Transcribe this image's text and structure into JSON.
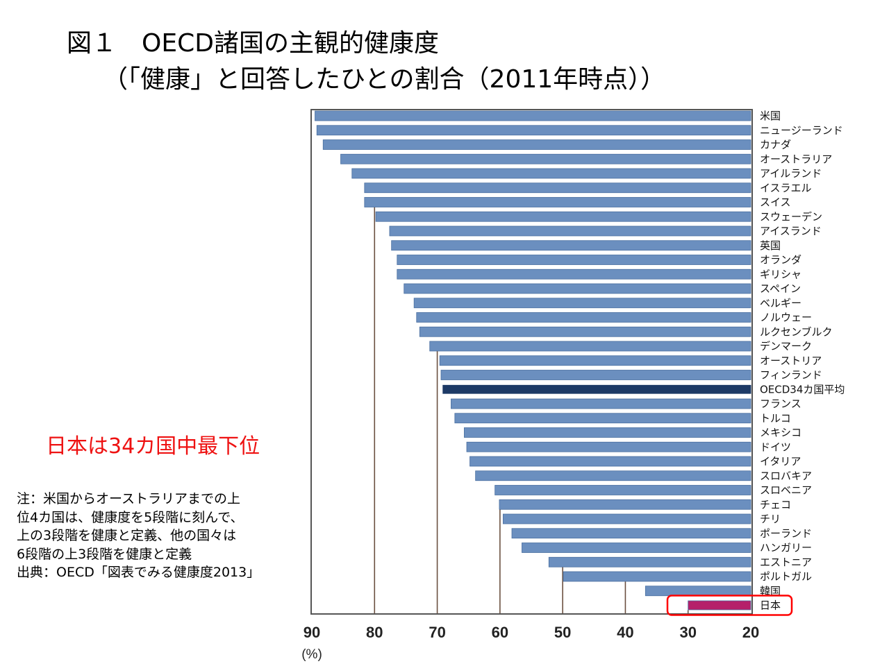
{
  "title": {
    "line1": "図１　OECD諸国の主観的健康度",
    "line2": "（「健康」と回答したひとの割合（2011年時点））"
  },
  "highlight_text": "日本は34カ国中最下位",
  "note_lines": [
    "注：米国からオーストラリアまでの上",
    "位4カ国は、健康度を5段階に刻んで、",
    "上の3段階を健康と定義、他の国々は",
    "6段階の上3段階を健康と定義",
    "出典：OECD「図表でみる健康度2013」"
  ],
  "colors": {
    "bar": "#6b8fbf",
    "bar_edge": "#4a6fa0",
    "average": "#1d3a66",
    "japan": "#b5206a",
    "highlight_box": "#ff0000",
    "gridline": "#6b5040"
  },
  "chart_data": {
    "type": "bar",
    "orientation": "horizontal",
    "reversed_x_axis": true,
    "xlim": [
      90,
      20
    ],
    "xticks": [
      "90",
      "80",
      "70",
      "60",
      "50",
      "40",
      "30",
      "20"
    ],
    "unit_label": "(%)",
    "grid": "vertical",
    "highlighted_category": "日本",
    "categories": [
      "米国",
      "ニュージーランド",
      "カナダ",
      "オーストラリア",
      "アイルランド",
      "イスラエル",
      "スイス",
      "スウェーデン",
      "アイスランド",
      "英国",
      "オランダ",
      "ギリシャ",
      "スペイン",
      "ベルギー",
      "ノルウェー",
      "ルクセンブルク",
      "デンマーク",
      "オーストリア",
      "フィンランド",
      "OECD34カ国平均",
      "フランス",
      "トルコ",
      "メキシコ",
      "ドイツ",
      "イタリア",
      "スロバキア",
      "スロベニア",
      "チェコ",
      "チリ",
      "ポーランド",
      "ハンガリー",
      "エストニア",
      "ポルトガル",
      "韓国",
      "日本"
    ],
    "values": [
      89.5,
      89.2,
      88.2,
      85.4,
      83.6,
      81.6,
      81.6,
      79.8,
      77.6,
      77.3,
      76.4,
      76.4,
      75.3,
      73.7,
      73.3,
      72.8,
      71.2,
      69.6,
      69.4,
      69.1,
      67.8,
      67.2,
      65.7,
      65.3,
      64.8,
      63.9,
      60.8,
      60.1,
      59.5,
      58.1,
      56.5,
      52.2,
      49.9,
      36.8,
      30.0
    ]
  }
}
